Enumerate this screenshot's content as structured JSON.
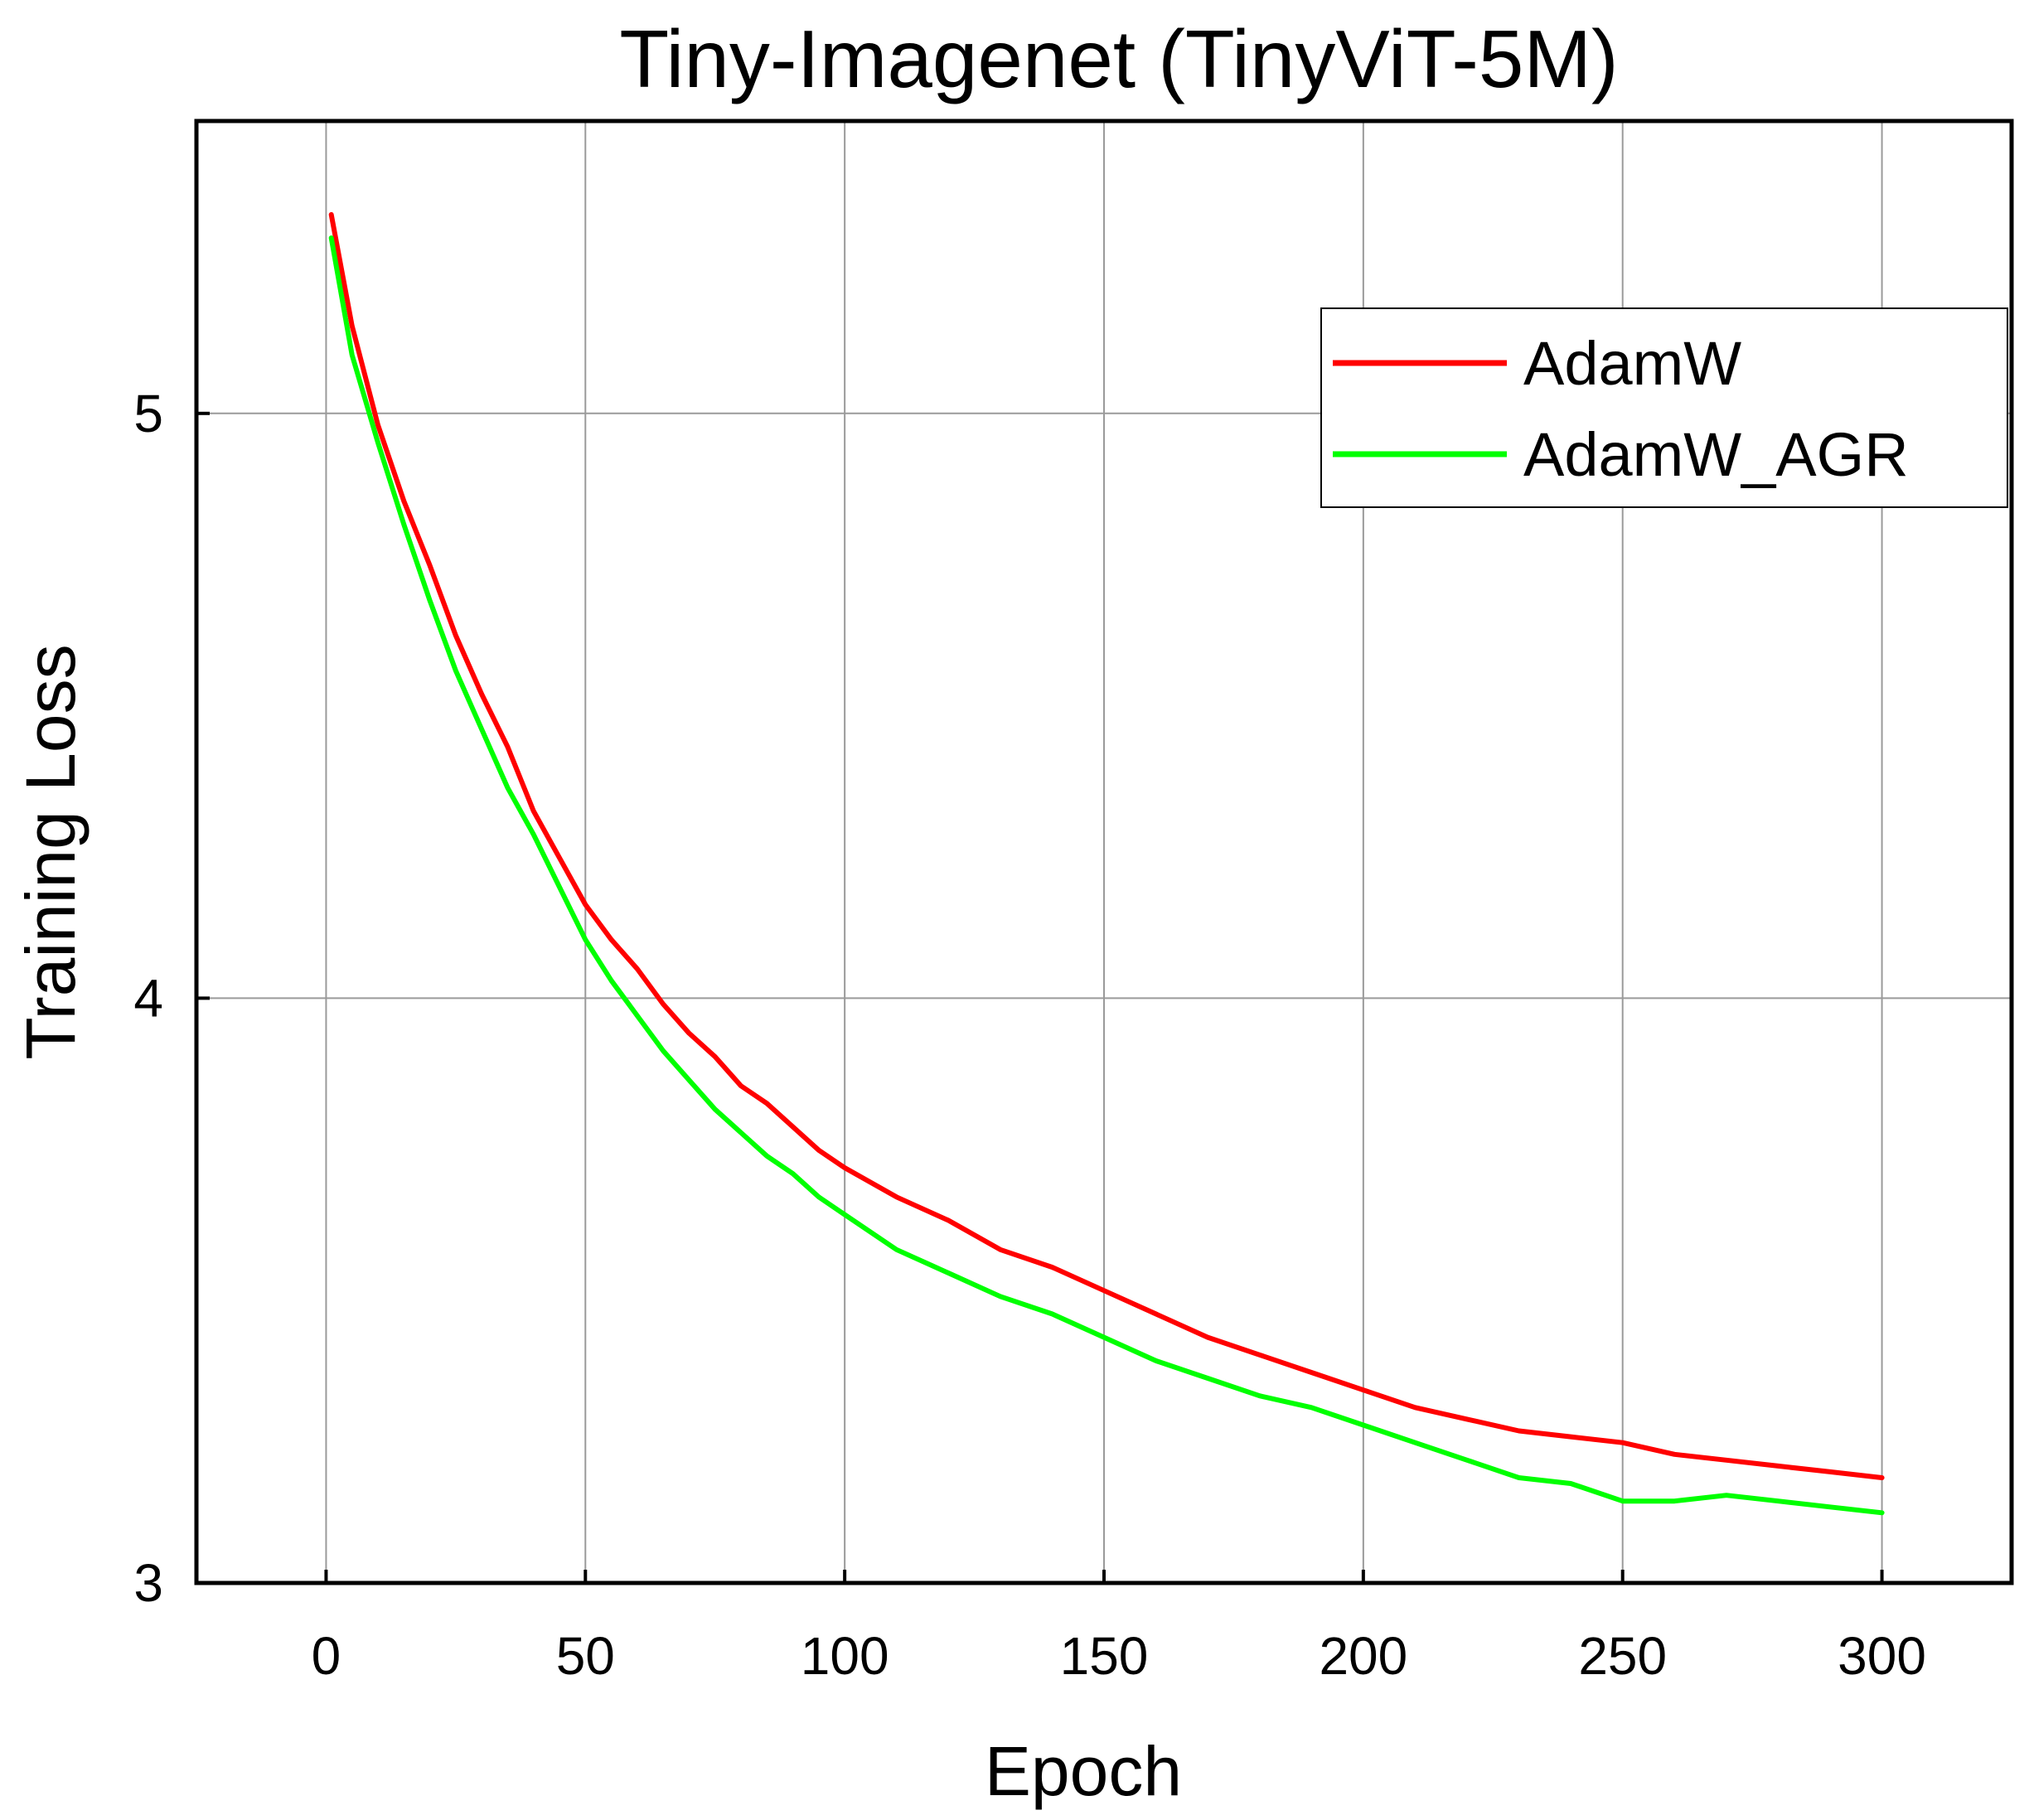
{
  "chart_data": {
    "type": "line",
    "title": "Tiny-Imagenet (TinyViT-5M)",
    "xlabel": "Epoch",
    "ylabel": "Training Loss",
    "xlim": [
      -25,
      325
    ],
    "ylim": [
      3.0,
      5.5
    ],
    "xticks": [
      0,
      50,
      100,
      150,
      200,
      250,
      300
    ],
    "yticks": [
      3,
      4,
      5
    ],
    "grid": true,
    "legend_position": "top-right",
    "x": [
      1,
      5,
      10,
      15,
      20,
      25,
      30,
      35,
      40,
      45,
      50,
      55,
      60,
      65,
      70,
      75,
      80,
      85,
      90,
      95,
      100,
      110,
      120,
      130,
      140,
      150,
      160,
      170,
      180,
      190,
      200,
      210,
      220,
      230,
      240,
      250,
      260,
      270,
      280,
      290,
      300
    ],
    "series": [
      {
        "name": "AdamW",
        "color": "#ff0000",
        "values": [
          5.34,
          5.15,
          4.98,
          4.85,
          4.74,
          4.62,
          4.52,
          4.43,
          4.32,
          4.24,
          4.16,
          4.1,
          4.05,
          3.99,
          3.94,
          3.9,
          3.85,
          3.82,
          3.78,
          3.74,
          3.71,
          3.66,
          3.62,
          3.57,
          3.54,
          3.5,
          3.46,
          3.42,
          3.39,
          3.36,
          3.33,
          3.3,
          3.28,
          3.26,
          3.25,
          3.24,
          3.22,
          3.21,
          3.2,
          3.19,
          3.18
        ]
      },
      {
        "name": "AdamW_AGR",
        "color": "#00ff00",
        "values": [
          5.3,
          5.1,
          4.95,
          4.81,
          4.68,
          4.56,
          4.46,
          4.36,
          4.28,
          4.19,
          4.1,
          4.03,
          3.97,
          3.91,
          3.86,
          3.81,
          3.77,
          3.73,
          3.7,
          3.66,
          3.63,
          3.57,
          3.53,
          3.49,
          3.46,
          3.42,
          3.38,
          3.35,
          3.32,
          3.3,
          3.27,
          3.24,
          3.21,
          3.18,
          3.17,
          3.14,
          3.14,
          3.15,
          3.14,
          3.13,
          3.12
        ]
      }
    ]
  }
}
